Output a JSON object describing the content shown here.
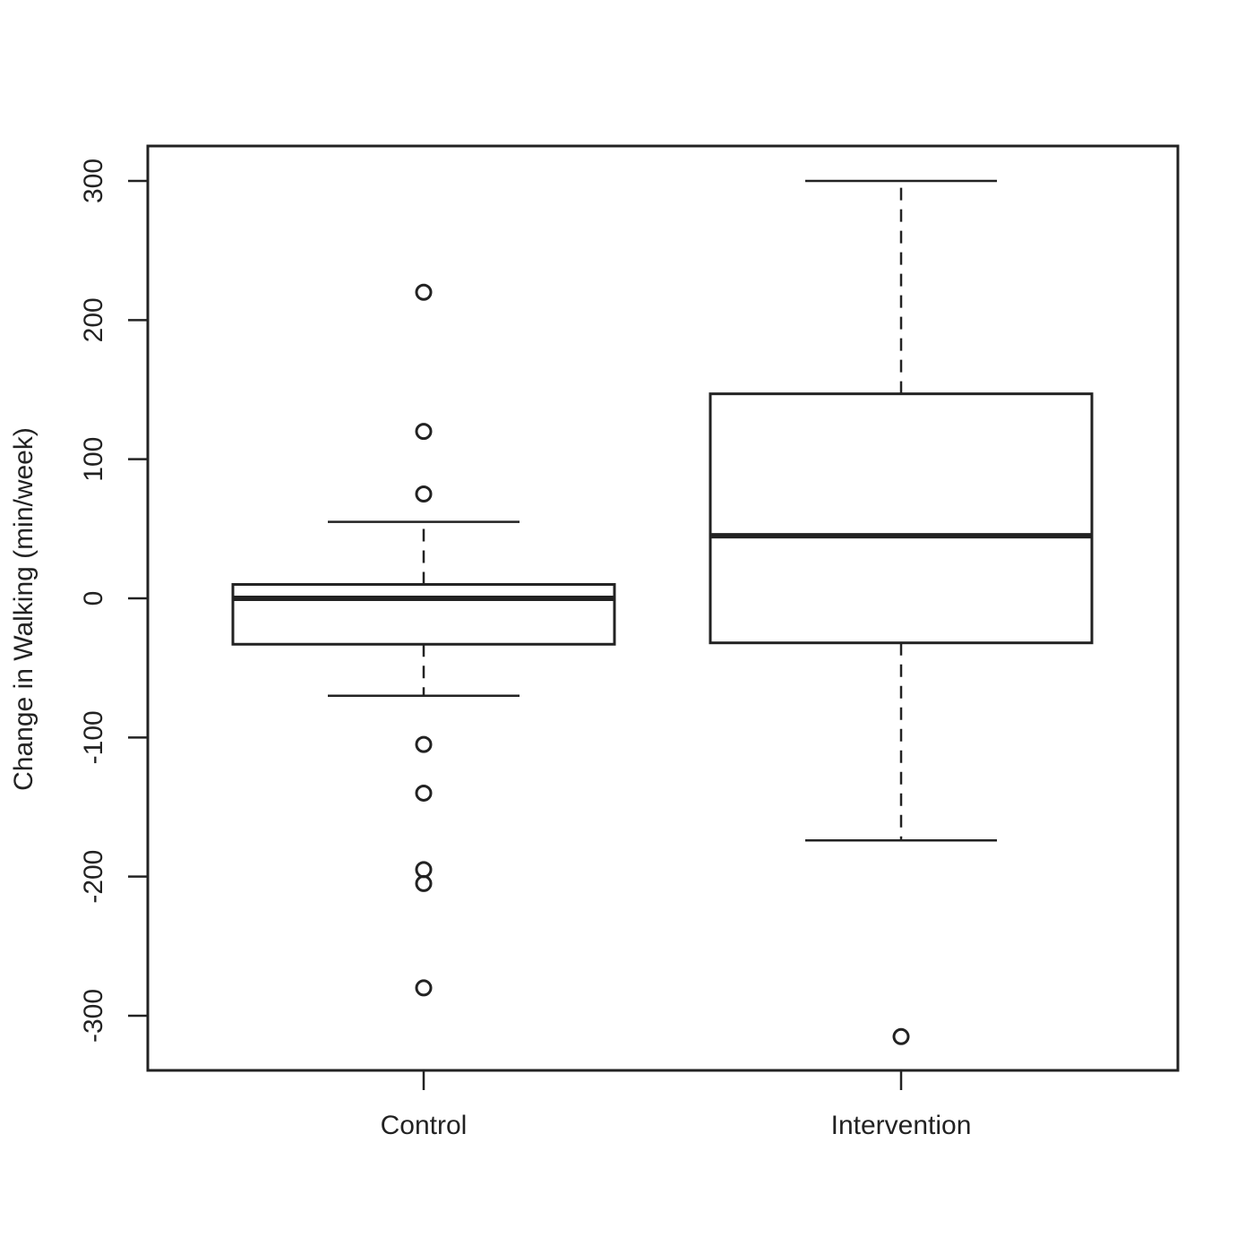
{
  "chart_data": {
    "type": "boxplot",
    "title": "",
    "xlabel": "",
    "ylabel": "Change in Walking (min/week)",
    "ylim": [
      -340,
      325
    ],
    "yticks": [
      -300,
      -200,
      -100,
      0,
      100,
      200,
      300
    ],
    "ytick_labels": [
      "-300",
      "-200",
      "-100",
      "0",
      "100",
      "200",
      "300"
    ],
    "categories": [
      "Control",
      "Intervention"
    ],
    "series": [
      {
        "category": "Control",
        "whisker_low": -70,
        "q1": -33,
        "median": 0,
        "q3": 10,
        "whisker_high": 55,
        "outliers": [
          220,
          120,
          75,
          -105,
          -140,
          -195,
          -205,
          -280
        ]
      },
      {
        "category": "Intervention",
        "whisker_low": -174,
        "q1": -32,
        "median": 45,
        "q3": 147,
        "whisker_high": 300,
        "outliers": [
          -315
        ]
      }
    ],
    "grid": false,
    "colors": {
      "stroke": "#222222",
      "fill": "#ffffff"
    }
  }
}
